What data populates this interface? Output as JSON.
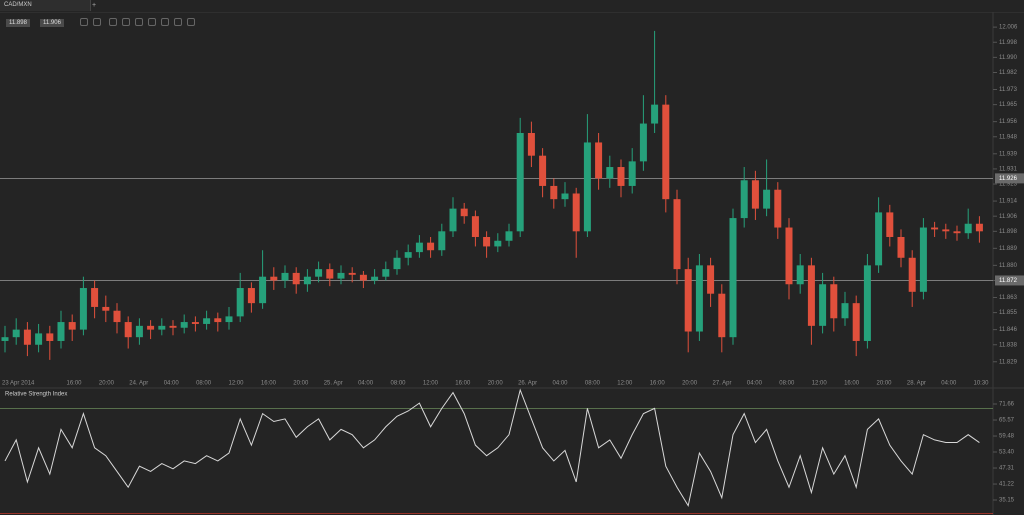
{
  "tab": "CAD/MXN",
  "tab_add": "+",
  "quote": {
    "bid": "11.898",
    "ask": "11.906"
  },
  "chart_data": {
    "type": "candlestick",
    "ohlc": [
      [
        11.84,
        11.848,
        11.834,
        11.842
      ],
      [
        11.842,
        11.852,
        11.838,
        11.846
      ],
      [
        11.846,
        11.85,
        11.832,
        11.838
      ],
      [
        11.838,
        11.849,
        11.834,
        11.844
      ],
      [
        11.844,
        11.848,
        11.83,
        11.84
      ],
      [
        11.84,
        11.856,
        11.836,
        11.85
      ],
      [
        11.85,
        11.854,
        11.84,
        11.846
      ],
      [
        11.846,
        11.874,
        11.843,
        11.868
      ],
      [
        11.868,
        11.872,
        11.852,
        11.858
      ],
      [
        11.858,
        11.864,
        11.85,
        11.856
      ],
      [
        11.856,
        11.86,
        11.844,
        11.85
      ],
      [
        11.85,
        11.853,
        11.836,
        11.842
      ],
      [
        11.842,
        11.852,
        11.838,
        11.848
      ],
      [
        11.848,
        11.851,
        11.841,
        11.846
      ],
      [
        11.846,
        11.852,
        11.843,
        11.848
      ],
      [
        11.848,
        11.851,
        11.843,
        11.847
      ],
      [
        11.847,
        11.854,
        11.844,
        11.85
      ],
      [
        11.85,
        11.853,
        11.845,
        11.849
      ],
      [
        11.849,
        11.856,
        11.846,
        11.852
      ],
      [
        11.852,
        11.855,
        11.845,
        11.85
      ],
      [
        11.85,
        11.858,
        11.846,
        11.853
      ],
      [
        11.853,
        11.876,
        11.85,
        11.868
      ],
      [
        11.868,
        11.871,
        11.855,
        11.86
      ],
      [
        11.86,
        11.888,
        11.857,
        11.874
      ],
      [
        11.874,
        11.879,
        11.867,
        11.872
      ],
      [
        11.872,
        11.88,
        11.868,
        11.876
      ],
      [
        11.876,
        11.879,
        11.865,
        11.87
      ],
      [
        11.87,
        11.878,
        11.866,
        11.874
      ],
      [
        11.874,
        11.882,
        11.871,
        11.878
      ],
      [
        11.878,
        11.881,
        11.869,
        11.873
      ],
      [
        11.873,
        11.88,
        11.87,
        11.876
      ],
      [
        11.876,
        11.879,
        11.871,
        11.875
      ],
      [
        11.875,
        11.877,
        11.868,
        11.872
      ],
      [
        11.872,
        11.878,
        11.87,
        11.874
      ],
      [
        11.874,
        11.882,
        11.872,
        11.878
      ],
      [
        11.878,
        11.888,
        11.875,
        11.884
      ],
      [
        11.884,
        11.891,
        11.88,
        11.887
      ],
      [
        11.887,
        11.896,
        11.884,
        11.892
      ],
      [
        11.892,
        11.895,
        11.884,
        11.888
      ],
      [
        11.888,
        11.902,
        11.885,
        11.898
      ],
      [
        11.898,
        11.916,
        11.895,
        11.91
      ],
      [
        11.91,
        11.913,
        11.902,
        11.906
      ],
      [
        11.906,
        11.909,
        11.89,
        11.895
      ],
      [
        11.895,
        11.898,
        11.884,
        11.89
      ],
      [
        11.89,
        11.897,
        11.887,
        11.893
      ],
      [
        11.893,
        11.902,
        11.89,
        11.898
      ],
      [
        11.898,
        11.958,
        11.895,
        11.95
      ],
      [
        11.95,
        11.956,
        11.932,
        11.938
      ],
      [
        11.938,
        11.942,
        11.916,
        11.922
      ],
      [
        11.922,
        11.926,
        11.91,
        11.915
      ],
      [
        11.915,
        11.924,
        11.911,
        11.918
      ],
      [
        11.918,
        11.921,
        11.884,
        11.898
      ],
      [
        11.898,
        11.96,
        11.895,
        11.945
      ],
      [
        11.945,
        11.95,
        11.92,
        11.926
      ],
      [
        11.926,
        11.938,
        11.921,
        11.932
      ],
      [
        11.932,
        11.936,
        11.916,
        11.922
      ],
      [
        11.922,
        11.942,
        11.918,
        11.935
      ],
      [
        11.935,
        11.97,
        11.93,
        11.955
      ],
      [
        11.955,
        12.004,
        11.95,
        11.965
      ],
      [
        11.965,
        11.97,
        11.908,
        11.915
      ],
      [
        11.915,
        11.92,
        11.87,
        11.878
      ],
      [
        11.878,
        11.884,
        11.834,
        11.845
      ],
      [
        11.845,
        11.886,
        11.84,
        11.88
      ],
      [
        11.88,
        11.884,
        11.858,
        11.865
      ],
      [
        11.865,
        11.87,
        11.834,
        11.842
      ],
      [
        11.842,
        11.91,
        11.838,
        11.905
      ],
      [
        11.905,
        11.932,
        11.9,
        11.925
      ],
      [
        11.925,
        11.93,
        11.904,
        11.91
      ],
      [
        11.91,
        11.936,
        11.906,
        11.92
      ],
      [
        11.92,
        11.924,
        11.894,
        11.9
      ],
      [
        11.9,
        11.905,
        11.862,
        11.87
      ],
      [
        11.87,
        11.886,
        11.865,
        11.88
      ],
      [
        11.88,
        11.884,
        11.838,
        11.848
      ],
      [
        11.848,
        11.876,
        11.844,
        11.87
      ],
      [
        11.87,
        11.874,
        11.845,
        11.852
      ],
      [
        11.852,
        11.866,
        11.848,
        11.86
      ],
      [
        11.86,
        11.864,
        11.832,
        11.84
      ],
      [
        11.84,
        11.886,
        11.836,
        11.88
      ],
      [
        11.88,
        11.916,
        11.876,
        11.908
      ],
      [
        11.908,
        11.912,
        11.89,
        11.895
      ],
      [
        11.895,
        11.899,
        11.879,
        11.884
      ],
      [
        11.884,
        11.888,
        11.858,
        11.866
      ],
      [
        11.866,
        11.905,
        11.862,
        11.9
      ],
      [
        11.9,
        11.903,
        11.895,
        11.899
      ],
      [
        11.899,
        11.902,
        11.894,
        11.898
      ],
      [
        11.898,
        11.901,
        11.893,
        11.897
      ],
      [
        11.897,
        11.91,
        11.894,
        11.902
      ],
      [
        11.902,
        11.906,
        11.892,
        11.898
      ]
    ],
    "up_color": "#26a17b",
    "down_color": "#e0503c",
    "ylim": [
      11.822,
      12.014
    ],
    "yticks": [
      12.006,
      11.998,
      {
        "value": 11.99,
        "label": "11.990"
      },
      11.982,
      11.973,
      11.965,
      11.956,
      11.948,
      11.939,
      11.931,
      11.923,
      11.914,
      11.906,
      11.898,
      11.889,
      {
        "value": 11.88,
        "label": "11.880"
      },
      11.872,
      11.863,
      11.855,
      11.846,
      11.838,
      11.829
    ],
    "levels": [
      11.926,
      11.872
    ],
    "x_labels": [
      "23 Apr 2014",
      "16:00",
      "20:00",
      "24. Apr",
      "04:00",
      "08:00",
      "12:00",
      "16:00",
      "20:00",
      "25. Apr",
      "04:00",
      "08:00",
      "12:00",
      "16:00",
      "20:00",
      "26. Apr",
      "04:00",
      "08:00",
      "12:00",
      "16:00",
      "20:00",
      "27. Apr",
      "04:00",
      "08:00",
      "12:00",
      "16:00",
      "20:00",
      "28. Apr",
      "04:00",
      "10:30"
    ],
    "rsi": {
      "title": "Relative Strength Index",
      "color": "#d8d8d8",
      "values": [
        50,
        58,
        42,
        55,
        45,
        62,
        55,
        68,
        55,
        52,
        46,
        40,
        48,
        46,
        49,
        47,
        50,
        49,
        52,
        50,
        53,
        66,
        56,
        68,
        65,
        66,
        59,
        63,
        66,
        58,
        62,
        60,
        55,
        58,
        63,
        67,
        69,
        72,
        63,
        70,
        76,
        68,
        56,
        52,
        55,
        60,
        77,
        66,
        55,
        50,
        54,
        42,
        70,
        55,
        58,
        51,
        60,
        68,
        70,
        48,
        40,
        33,
        53,
        46,
        36,
        60,
        68,
        57,
        62,
        50,
        40,
        52,
        38,
        55,
        45,
        52,
        40,
        62,
        66,
        56,
        50,
        45,
        60,
        58,
        57,
        57,
        60,
        57
      ],
      "ylim": [
        30.58,
        77.75
      ],
      "yticks": [
        71.66,
        65.57,
        59.48,
        {
          "value": 53.4,
          "label": "53.40"
        },
        47.31,
        41.22,
        35.15
      ],
      "levels": [
        70,
        30
      ]
    }
  }
}
